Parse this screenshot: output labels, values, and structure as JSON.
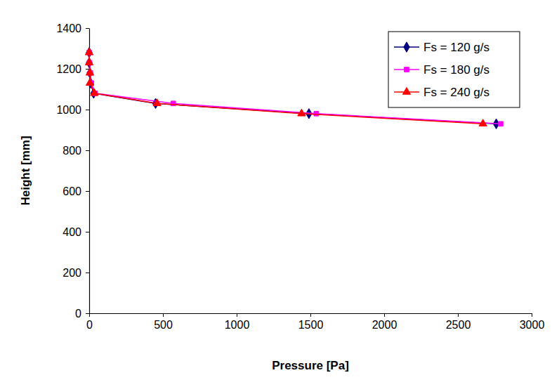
{
  "chart_data": {
    "type": "line",
    "x_label": "Pressure [Pa]",
    "y_label": "Height [mm]",
    "xlim": [
      0,
      3000
    ],
    "xticks": [
      0,
      500,
      1000,
      1500,
      2000,
      2500,
      3000
    ],
    "ylim": [
      0,
      1400
    ],
    "yticks": [
      0,
      200,
      400,
      600,
      800,
      1000,
      1200,
      1400
    ],
    "grid": false,
    "legend": "top-right",
    "series": [
      {
        "name": "Fs = 120 g/s",
        "color": "#000080",
        "marker": "diamond",
        "line_style": "solid",
        "x": [
          0,
          0,
          5,
          10,
          30,
          450,
          1490,
          2760
        ],
        "values": [
          1280,
          1230,
          1180,
          1130,
          1080,
          1030,
          980,
          930
        ]
      },
      {
        "name": "Fs = 180 g/s",
        "color": "#ff00ff",
        "marker": "square",
        "line_style": "solid",
        "x": [
          0,
          2,
          8,
          15,
          40,
          570,
          1540,
          2790
        ],
        "values": [
          1280,
          1230,
          1180,
          1130,
          1080,
          1030,
          980,
          930
        ]
      },
      {
        "name": "Fs = 240 g/s",
        "color": "#ff0000",
        "marker": "triangle",
        "line_style": "solid",
        "x": [
          0,
          0,
          5,
          5,
          35,
          460,
          1440,
          2670
        ],
        "values": [
          1280,
          1230,
          1180,
          1130,
          1080,
          1030,
          980,
          930
        ]
      }
    ]
  }
}
